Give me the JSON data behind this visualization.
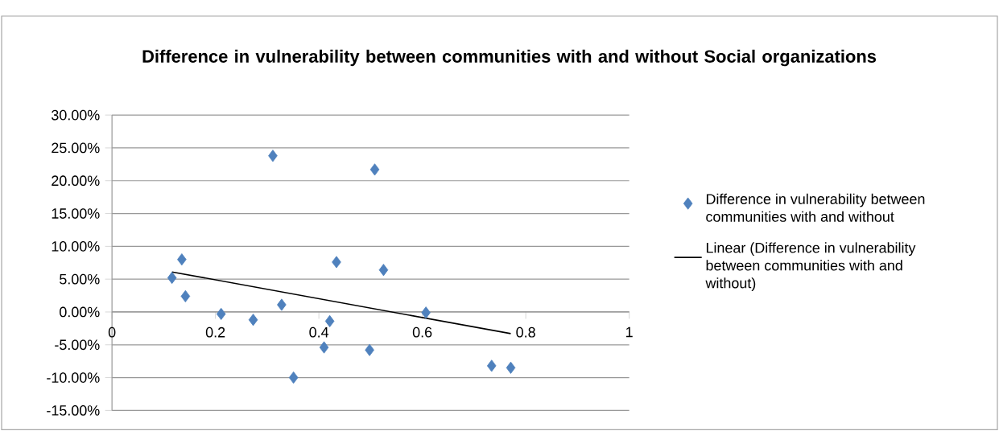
{
  "chart_data": {
    "type": "scatter",
    "title": "Difference in vulnerability between communities with and without Social organizations",
    "xlim": [
      0,
      1
    ],
    "xticks": [
      0,
      0.2,
      0.4,
      0.6,
      0.8,
      1
    ],
    "ylim": [
      -15,
      30
    ],
    "yticks": [
      {
        "value": -15,
        "label": "-15.00%"
      },
      {
        "value": -10,
        "label": "-10.00%"
      },
      {
        "value": -5,
        "label": "-5.00%"
      },
      {
        "value": 0,
        "label": "0.00%"
      },
      {
        "value": 5,
        "label": "5.00%"
      },
      {
        "value": 10,
        "label": "10.00%"
      },
      {
        "value": 15,
        "label": "15.00%"
      },
      {
        "value": 20,
        "label": "20.00%"
      },
      {
        "value": 25,
        "label": "25.00%"
      },
      {
        "value": 30,
        "label": "30.00%"
      }
    ],
    "grid": "y",
    "legend": "right",
    "series": [
      {
        "name": "Difference in vulnerability between communities with and without",
        "color": "#4f81bd",
        "marker": "diamond",
        "x": [
          0.116,
          0.135,
          0.142,
          0.211,
          0.273,
          0.311,
          0.328,
          0.351,
          0.41,
          0.421,
          0.434,
          0.498,
          0.508,
          0.525,
          0.607,
          0.734,
          0.771
        ],
        "values": [
          5.2,
          8.0,
          2.4,
          -0.3,
          -1.2,
          23.8,
          1.1,
          -10.0,
          -5.4,
          -1.4,
          7.6,
          -5.8,
          21.7,
          6.4,
          -0.1,
          -8.2,
          -8.5
        ]
      },
      {
        "type": "line",
        "name": "Linear (Difference in vulnerability between communities with and without)",
        "color": "#000000",
        "x": [
          0.116,
          0.771
        ],
        "values": [
          6.1,
          -3.3
        ]
      }
    ]
  }
}
